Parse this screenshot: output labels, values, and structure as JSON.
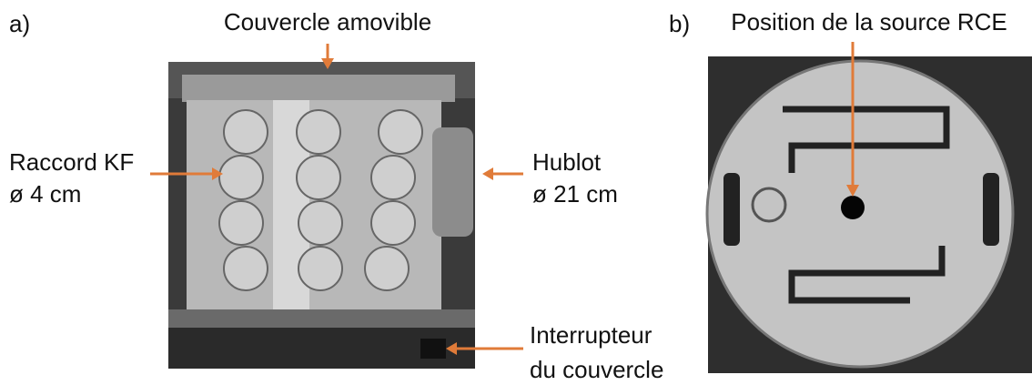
{
  "panels": [
    {
      "label": "a)",
      "annotations": [
        {
          "text": "Couvercle amovible"
        },
        {
          "text": "Raccord KF",
          "detail": "ø 4 cm"
        },
        {
          "text": "Hublot",
          "detail": "ø 21 cm"
        },
        {
          "text": "Interrupteur",
          "detail": "du couvercle"
        }
      ]
    },
    {
      "label": "b)",
      "annotations": [
        {
          "text": "Position de la source RCE"
        }
      ]
    }
  ]
}
